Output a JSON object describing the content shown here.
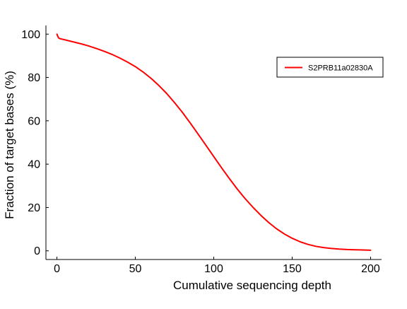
{
  "chart_data": {
    "type": "line",
    "title": "",
    "xlabel": "Cumulative sequencing depth",
    "ylabel": "Fraction of target bases (%)",
    "xlim": [
      -7,
      207
    ],
    "ylim": [
      -4,
      104
    ],
    "xticks": [
      0,
      50,
      100,
      150,
      200
    ],
    "yticks": [
      0,
      20,
      40,
      60,
      80,
      100
    ],
    "grid": false,
    "legend_position": "top-right",
    "series": [
      {
        "name": "S2PRB11a02830A",
        "color": "#ff0000",
        "x": [
          0,
          1,
          2,
          5,
          10,
          15,
          20,
          25,
          30,
          35,
          40,
          45,
          50,
          55,
          60,
          65,
          70,
          75,
          80,
          85,
          90,
          95,
          100,
          105,
          110,
          115,
          120,
          125,
          130,
          135,
          140,
          145,
          150,
          155,
          160,
          165,
          170,
          175,
          180,
          185,
          190,
          195,
          200
        ],
        "y": [
          100,
          98.3,
          97.9,
          97.4,
          96.5,
          95.6,
          94.6,
          93.4,
          92.1,
          90.7,
          89.0,
          87.1,
          85.0,
          82.5,
          79.6,
          76.3,
          72.6,
          68.4,
          63.9,
          59.0,
          53.9,
          48.7,
          43.5,
          38.3,
          33.3,
          28.5,
          24.1,
          20.1,
          16.4,
          13.1,
          10.2,
          7.8,
          5.8,
          4.2,
          3.0,
          2.1,
          1.5,
          1.1,
          0.8,
          0.6,
          0.5,
          0.4,
          0.3
        ]
      }
    ]
  }
}
